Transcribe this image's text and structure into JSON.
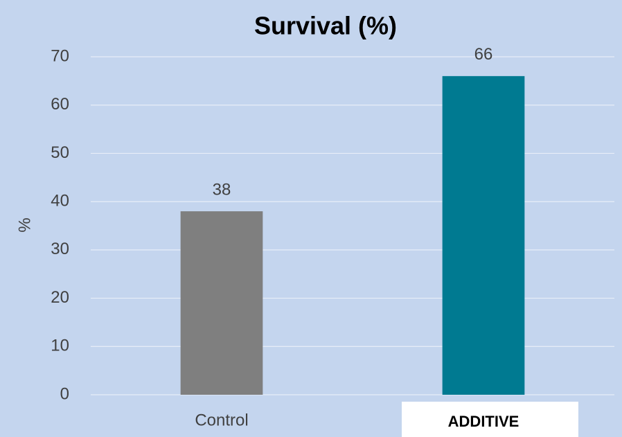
{
  "chart_data": {
    "type": "bar",
    "title": "Survival (%)",
    "y_label": "%",
    "categories": [
      "Control",
      "ADDITIVE"
    ],
    "values": [
      38,
      66
    ],
    "colors": [
      "#7f7f7f",
      "#007a91"
    ],
    "ylim": [
      0,
      70
    ],
    "yticks": [
      0,
      10,
      20,
      30,
      40,
      50,
      60,
      70
    ],
    "grid": true,
    "highlight_category": 1
  }
}
